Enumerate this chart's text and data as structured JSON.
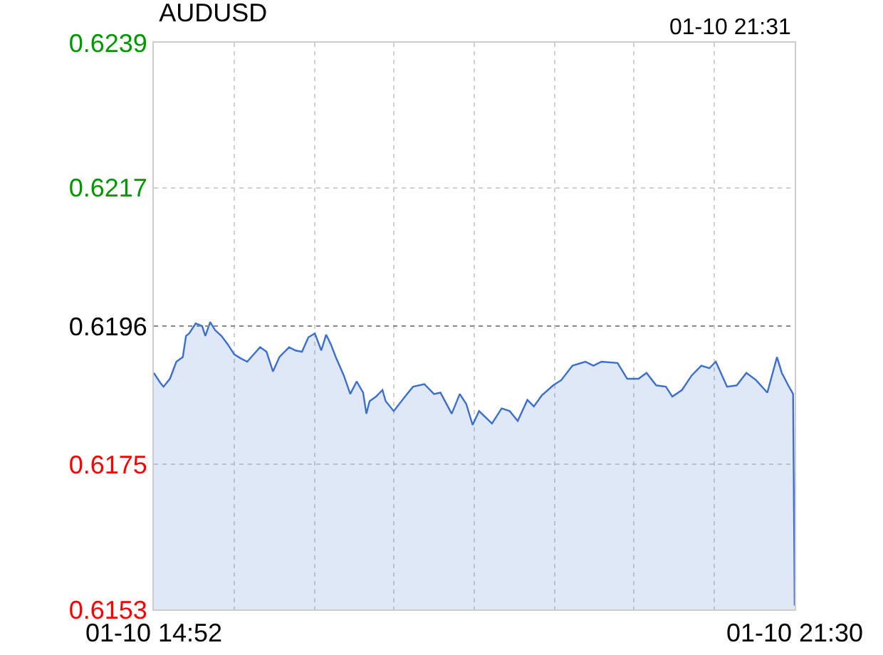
{
  "chart_data": {
    "type": "area",
    "title": "AUDUSD",
    "annotations": [
      "01-10 21:31"
    ],
    "x": [
      "--01-10T14:52",
      "--01-10T14:56",
      "--01-10T14:58",
      "--01-10T15:02",
      "--01-10T15:06",
      "--01-10T15:10",
      "--01-10T15:12",
      "--01-10T15:14",
      "--01-10T15:18",
      "--01-10T15:22",
      "--01-10T15:24",
      "--01-10T15:27",
      "--01-10T15:30",
      "--01-10T15:34",
      "--01-10T15:38",
      "--01-10T15:42",
      "--01-10T15:46",
      "--01-10T15:50",
      "--01-10T15:54",
      "--01-10T15:58",
      "--01-10T16:02",
      "--01-10T16:06",
      "--01-10T16:10",
      "--01-10T16:16",
      "--01-10T16:20",
      "--01-10T16:24",
      "--01-10T16:28",
      "--01-10T16:32",
      "--01-10T16:36",
      "--01-10T16:39",
      "--01-10T16:42",
      "--01-10T16:45",
      "--01-10T16:50",
      "--01-10T16:54",
      "--01-10T16:58",
      "--01-10T17:02",
      "--01-10T17:04",
      "--01-10T17:06",
      "--01-10T17:10",
      "--01-10T17:14",
      "--01-10T17:16",
      "--01-10T17:21",
      "--01-10T17:28",
      "--01-10T17:33",
      "--01-10T17:40",
      "--01-10T17:46",
      "--01-10T17:50",
      "--01-10T17:57",
      "--01-10T18:02",
      "--01-10T18:06",
      "--01-10T18:10",
      "--01-10T18:14",
      "--01-10T18:22",
      "--01-10T18:28",
      "--01-10T18:33",
      "--01-10T18:38",
      "--01-10T18:44",
      "--01-10T18:48",
      "--01-10T18:53",
      "--01-10T19:00",
      "--01-10T19:05",
      "--01-10T19:12",
      "--01-10T19:20",
      "--01-10T19:25",
      "--01-10T19:30",
      "--01-10T19:40",
      "--01-10T19:46",
      "--01-10T19:53",
      "--01-10T19:58",
      "--01-10T20:04",
      "--01-10T20:10",
      "--01-10T20:14",
      "--01-10T20:20",
      "--01-10T20:26",
      "--01-10T20:32",
      "--01-10T20:37",
      "--01-10T20:41",
      "--01-10T20:48",
      "--01-10T20:54",
      "--01-10T21:00",
      "--01-10T21:06",
      "--01-10T21:13",
      "--01-10T21:19",
      "--01-10T21:22",
      "--01-10T21:26",
      "--01-10T21:29",
      "--01-10T21:30"
    ],
    "series": [
      {
        "color": "#3a6fd0",
        "values": [
          0.61889,
          0.61874,
          0.61868,
          0.6188,
          0.61906,
          0.61913,
          0.61945,
          0.61949,
          0.61964,
          0.6196,
          0.61945,
          0.61966,
          0.61954,
          0.61945,
          0.61932,
          0.61917,
          0.61911,
          0.61906,
          0.61917,
          0.61928,
          0.61921,
          0.61891,
          0.61913,
          0.61928,
          0.61923,
          0.61921,
          0.61943,
          0.61949,
          0.61923,
          0.61947,
          0.61932,
          0.61913,
          0.61885,
          0.61857,
          0.61876,
          0.61859,
          0.61827,
          0.61846,
          0.61853,
          0.61863,
          0.61846,
          0.61831,
          0.61853,
          0.61868,
          0.61872,
          0.61857,
          0.61859,
          0.61827,
          0.61857,
          0.61842,
          0.6181,
          0.61831,
          0.61812,
          0.61835,
          0.61831,
          0.61816,
          0.61848,
          0.61838,
          0.61855,
          0.6187,
          0.61878,
          0.619,
          0.61906,
          0.619,
          0.61906,
          0.61904,
          0.6188,
          0.6188,
          0.61889,
          0.6187,
          0.61868,
          0.61853,
          0.61863,
          0.61885,
          0.619,
          0.61896,
          0.61906,
          0.61868,
          0.6187,
          0.61889,
          0.61878,
          0.61859,
          0.61913,
          0.61889,
          0.6187,
          0.61857,
          0.61536
        ]
      }
    ],
    "xlim": [
      "--01-10T14:52",
      "--01-10T21:30"
    ],
    "xticks": [
      {
        "value": "--01-10T14:52",
        "label": "01-10 14:52"
      },
      {
        "value": "--01-10T15:42",
        "label": null
      },
      {
        "value": "--01-10T16:32",
        "label": null
      },
      {
        "value": "--01-10T17:21",
        "label": null
      },
      {
        "value": "--01-10T18:11",
        "label": null
      },
      {
        "value": "--01-10T19:01",
        "label": null
      },
      {
        "value": "--01-10T19:50",
        "label": null
      },
      {
        "value": "--01-10T20:40",
        "label": null
      },
      {
        "value": "--01-10T21:30",
        "label": "01-10 21:30"
      }
    ],
    "ylim": [
      0.6153,
      0.6239
    ],
    "yticks": [
      0.6153,
      0.6175,
      0.6196,
      0.6217,
      0.6239
    ],
    "grid": true,
    "ref_lines": [
      {
        "axis": "y",
        "value": 0.6196,
        "label": null,
        "color": "#888888",
        "line_style": "dotted"
      }
    ]
  }
}
